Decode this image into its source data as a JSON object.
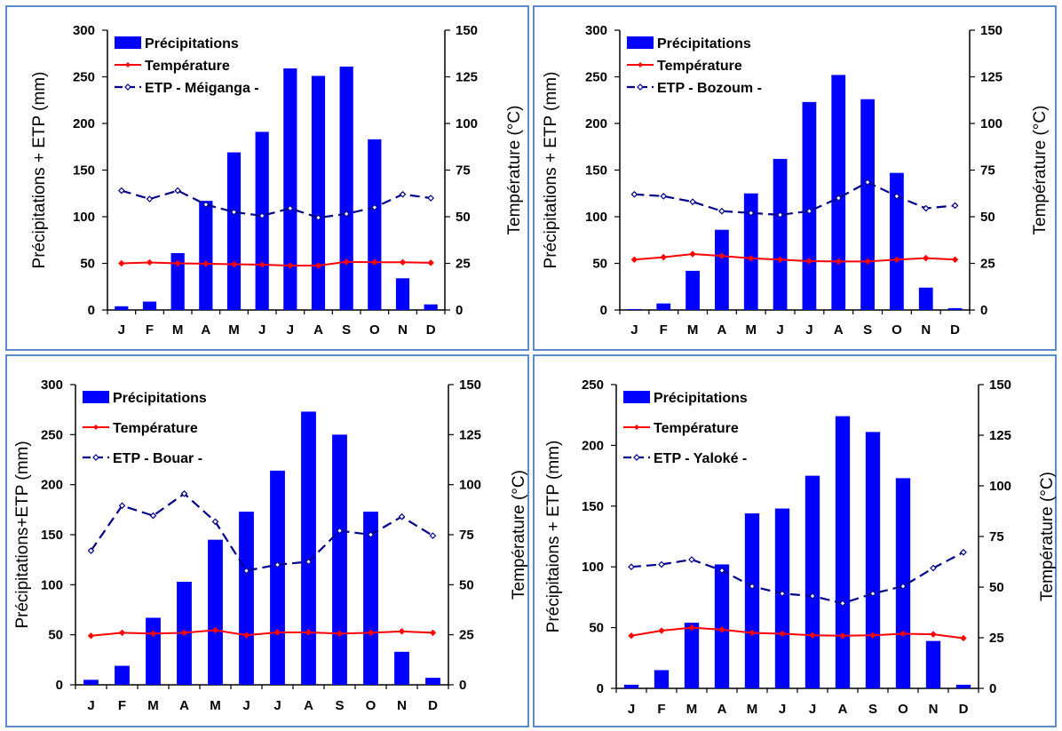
{
  "colors": {
    "precip": "#0000ff",
    "temp": "#ff0000",
    "etp": "#00008b",
    "border": "#5b8bc9"
  },
  "chart_data": [
    {
      "type": "bar+line",
      "categories": [
        "J",
        "F",
        "M",
        "A",
        "M",
        "J",
        "J",
        "A",
        "S",
        "O",
        "N",
        "D"
      ],
      "ylabel": "Précipitations + ETP (mm)",
      "ylabel_right": "Température (°C)",
      "ylim": [
        0,
        300
      ],
      "ylim_right": [
        0,
        150
      ],
      "yticks": [
        "0",
        "50",
        "100",
        "150",
        "200",
        "250",
        "300"
      ],
      "yticks_right": [
        "0",
        "25",
        "50",
        "75",
        "100",
        "125",
        "150"
      ],
      "grid": false,
      "legend_position": "top-left",
      "legend": {
        "bars": "Précipitations",
        "temp": "Température",
        "etp": "ETP - Méiganga -"
      },
      "series": [
        {
          "name": "Précipitations",
          "axis": "left",
          "kind": "bar",
          "values": [
            4,
            9,
            61,
            117,
            169,
            191,
            259,
            251,
            261,
            183,
            34,
            6
          ]
        },
        {
          "name": "Température",
          "axis": "right",
          "kind": "line",
          "values": [
            25,
            25.5,
            25,
            24.8,
            24.5,
            24.3,
            23.8,
            23.8,
            25.8,
            25.6,
            25.6,
            25.3
          ]
        },
        {
          "name": "ETP",
          "axis": "left",
          "kind": "dashed",
          "values": [
            128,
            119,
            128,
            113,
            105,
            101,
            109,
            99,
            103,
            110,
            124,
            120
          ]
        }
      ]
    },
    {
      "type": "bar+line",
      "categories": [
        "J",
        "F",
        "M",
        "A",
        "M",
        "J",
        "J",
        "A",
        "S",
        "O",
        "N",
        "D"
      ],
      "ylabel": "Précipitations + ETP (mm)",
      "ylabel_right": "Température (°C)",
      "ylim": [
        0,
        300
      ],
      "ylim_right": [
        0,
        150
      ],
      "yticks": [
        "0",
        "50",
        "100",
        "150",
        "200",
        "250",
        "300"
      ],
      "yticks_right": [
        "0",
        "25",
        "50",
        "75",
        "100",
        "125",
        "150"
      ],
      "grid": false,
      "legend_position": "top-left",
      "legend": {
        "bars": "Précipitations",
        "temp": "Température",
        "etp": "ETP - Bozoum -"
      },
      "series": [
        {
          "name": "Précipitations",
          "axis": "left",
          "kind": "bar",
          "values": [
            1,
            7,
            42,
            86,
            125,
            162,
            223,
            252,
            226,
            147,
            24,
            2
          ]
        },
        {
          "name": "Température",
          "axis": "right",
          "kind": "line",
          "values": [
            27,
            28.3,
            30,
            29,
            27.7,
            27,
            26.2,
            26,
            26,
            27,
            27.8,
            27
          ]
        },
        {
          "name": "ETP",
          "axis": "left",
          "kind": "dashed",
          "values": [
            124,
            122,
            116,
            106,
            104,
            102,
            106,
            120,
            137,
            122,
            109,
            112
          ]
        }
      ]
    },
    {
      "type": "bar+line",
      "categories": [
        "J",
        "F",
        "M",
        "A",
        "M",
        "J",
        "J",
        "A",
        "S",
        "O",
        "N",
        "D"
      ],
      "ylabel": "Précipitations+ETP (mm)",
      "ylabel_right": "Température (°C)",
      "ylim": [
        0,
        300
      ],
      "ylim_right": [
        0,
        150
      ],
      "yticks": [
        "0",
        "50",
        "100",
        "150",
        "200",
        "250",
        "300"
      ],
      "yticks_right": [
        "0",
        "25",
        "50",
        "75",
        "100",
        "125",
        "150"
      ],
      "grid": false,
      "legend_position": "top-left",
      "legend": {
        "bars": "Précipitations",
        "temp": "Température",
        "etp": "ETP - Bouar -"
      },
      "series": [
        {
          "name": "Précipitations",
          "axis": "left",
          "kind": "bar",
          "values": [
            5,
            19,
            67,
            103,
            145,
            173,
            214,
            273,
            250,
            173,
            33,
            7
          ]
        },
        {
          "name": "Température",
          "axis": "right",
          "kind": "line",
          "values": [
            24.5,
            26,
            25.6,
            26,
            27.3,
            24.8,
            26.2,
            26.2,
            25.6,
            26,
            26.7,
            26
          ]
        },
        {
          "name": "ETP",
          "axis": "left",
          "kind": "dashed",
          "values": [
            134,
            179,
            169,
            191,
            163,
            114,
            120,
            123,
            154,
            150,
            168,
            149
          ]
        }
      ]
    },
    {
      "type": "bar+line",
      "categories": [
        "J",
        "F",
        "M",
        "A",
        "M",
        "J",
        "J",
        "A",
        "S",
        "O",
        "N",
        "D"
      ],
      "ylabel": "Précipitaions + ETP (mm)",
      "ylabel_right": "Température (°C)",
      "ylim": [
        0,
        250
      ],
      "ylim_right": [
        0,
        150
      ],
      "yticks": [
        "0",
        "50",
        "100",
        "150",
        "200",
        "250"
      ],
      "yticks_right": [
        "0",
        "25",
        "50",
        "75",
        "100",
        "125",
        "150"
      ],
      "grid": false,
      "legend_position": "top-left",
      "legend": {
        "bars": "Précipitations",
        "temp": "Température",
        "etp": "ETP - Yaloké -"
      },
      "series": [
        {
          "name": "Précipitations",
          "axis": "left",
          "kind": "bar",
          "values": [
            3,
            15,
            54,
            102,
            144,
            148,
            175,
            224,
            211,
            173,
            39,
            3
          ]
        },
        {
          "name": "Température",
          "axis": "right",
          "kind": "line",
          "values": [
            26,
            28.5,
            30,
            29,
            27.4,
            27,
            26.2,
            26,
            26.2,
            27,
            26.7,
            24.8
          ]
        },
        {
          "name": "ETP",
          "axis": "left",
          "kind": "dashed",
          "values": [
            100,
            102,
            106,
            97,
            84,
            78,
            76,
            70,
            78,
            84,
            99,
            112
          ]
        }
      ]
    }
  ]
}
